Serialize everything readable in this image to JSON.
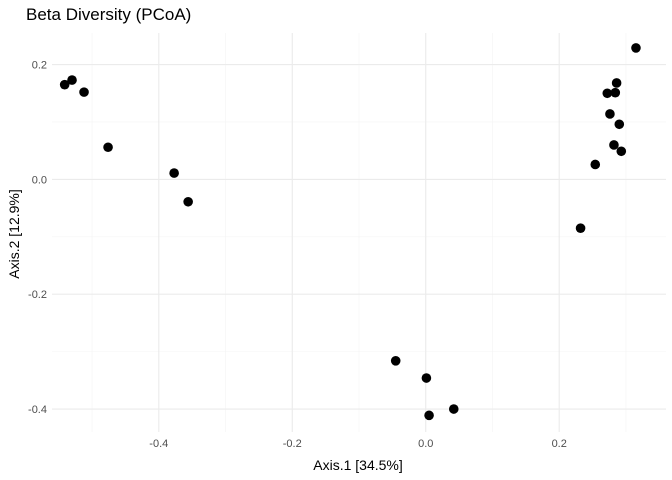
{
  "chart_data": {
    "type": "scatter",
    "title": "Beta Diversity (PCoA)",
    "xlabel": "Axis.1   [34.5%]",
    "ylabel": "Axis.2   [12.9%]",
    "xlim": [
      -0.56,
      0.36
    ],
    "ylim": [
      -0.44,
      0.255
    ],
    "x_ticks": [
      -0.4,
      -0.2,
      0.0,
      0.2
    ],
    "x_tick_labels": [
      "-0.4",
      "-0.2",
      "0.0",
      "0.2"
    ],
    "y_ticks": [
      -0.4,
      -0.2,
      0.0,
      0.2
    ],
    "y_tick_labels": [
      "-0.4",
      "-0.2",
      "0.0",
      "0.2"
    ],
    "grid": true,
    "point_color": "#000000",
    "points": [
      {
        "x": -0.541,
        "y": 0.165
      },
      {
        "x": -0.53,
        "y": 0.173
      },
      {
        "x": -0.512,
        "y": 0.152
      },
      {
        "x": -0.476,
        "y": 0.056
      },
      {
        "x": -0.377,
        "y": 0.011
      },
      {
        "x": -0.356,
        "y": -0.039
      },
      {
        "x": -0.045,
        "y": -0.316
      },
      {
        "x": 0.001,
        "y": -0.346
      },
      {
        "x": 0.005,
        "y": -0.411
      },
      {
        "x": 0.042,
        "y": -0.4
      },
      {
        "x": 0.232,
        "y": -0.085
      },
      {
        "x": 0.254,
        "y": 0.026
      },
      {
        "x": 0.272,
        "y": 0.15
      },
      {
        "x": 0.276,
        "y": 0.114
      },
      {
        "x": 0.282,
        "y": 0.06
      },
      {
        "x": 0.284,
        "y": 0.151
      },
      {
        "x": 0.286,
        "y": 0.168
      },
      {
        "x": 0.29,
        "y": 0.096
      },
      {
        "x": 0.293,
        "y": 0.049
      },
      {
        "x": 0.315,
        "y": 0.229
      }
    ]
  }
}
